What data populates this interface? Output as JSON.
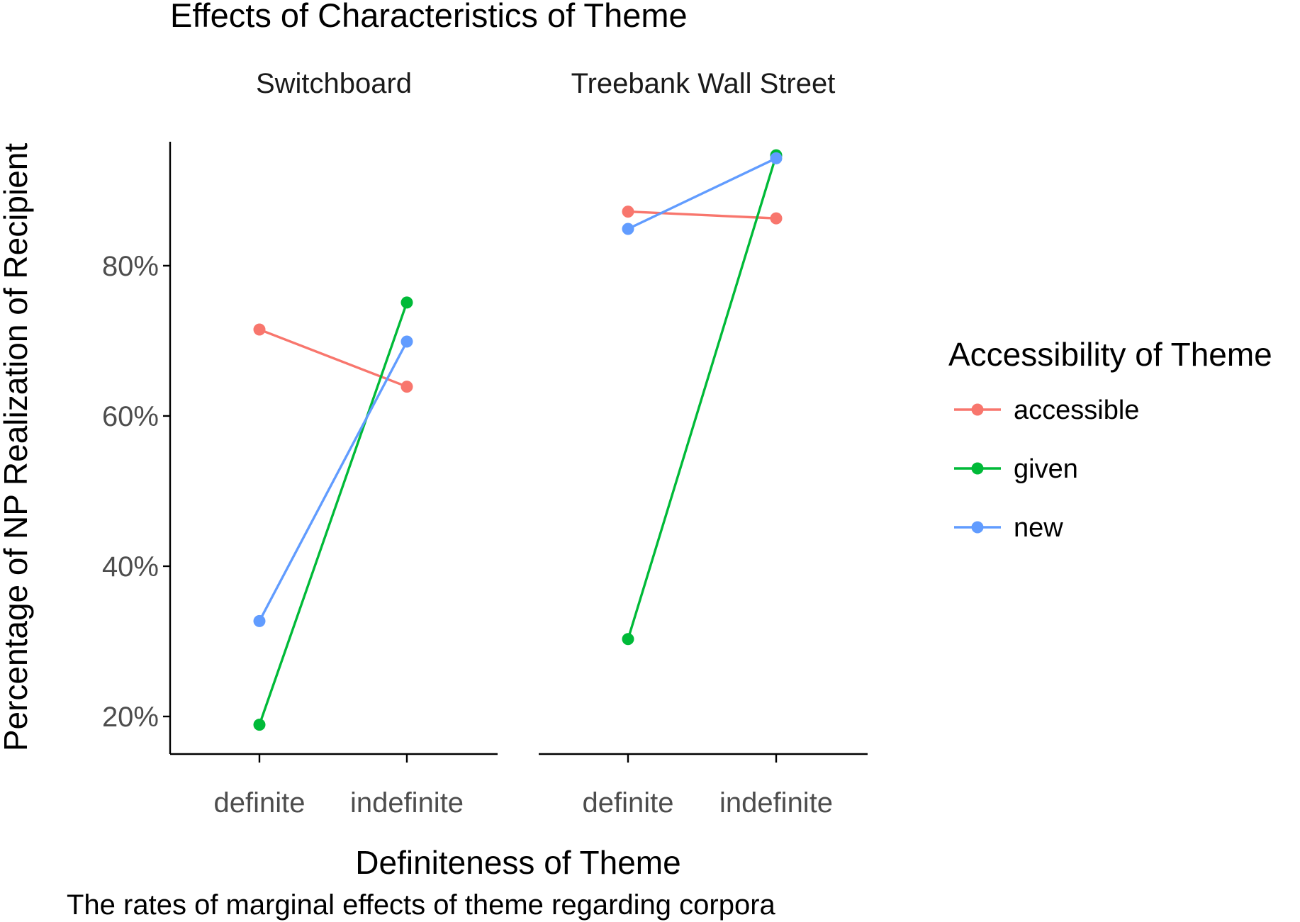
{
  "chart_data": {
    "type": "line",
    "title": "Effects of Characteristics of Theme",
    "xlabel": "Definiteness of Theme",
    "ylabel": "Percentage of NP Realization of Recipient",
    "caption": "The rates of marginal effects of theme regarding corpora",
    "categories": [
      "definite",
      "indefinite"
    ],
    "ylim": [
      0.15,
      0.965
    ],
    "yticks": [
      0.2,
      0.4,
      0.6,
      0.8
    ],
    "ytick_labels": [
      "20%",
      "40%",
      "60%",
      "80%"
    ],
    "grid": false,
    "legend": {
      "title": "Accessibility of Theme",
      "position": "right"
    },
    "series_colors": {
      "accessible": "#F8766D",
      "given": "#00BA38",
      "new": "#619CFF"
    },
    "panels": [
      {
        "name": "Switchboard",
        "series": [
          {
            "name": "accessible",
            "values": [
              0.715,
              0.639
            ]
          },
          {
            "name": "given",
            "values": [
              0.189,
              0.751
            ]
          },
          {
            "name": "new",
            "values": [
              0.327,
              0.699
            ]
          }
        ]
      },
      {
        "name": "Treebank Wall Street",
        "series": [
          {
            "name": "accessible",
            "values": [
              0.872,
              0.863
            ]
          },
          {
            "name": "given",
            "values": [
              0.303,
              0.947
            ]
          },
          {
            "name": "new",
            "values": [
              0.849,
              0.943
            ]
          }
        ]
      }
    ]
  }
}
